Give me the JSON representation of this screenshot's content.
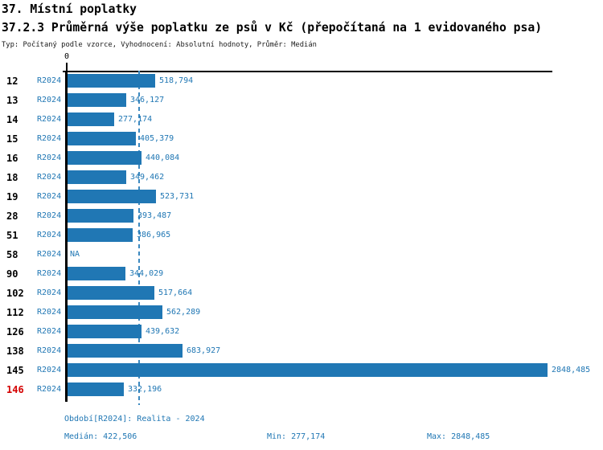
{
  "header": {
    "title": "37. Místní poplatky",
    "subtitle": "37.2.3 Průměrná výše poplatku ze psů v Kč (přepočítaná na 1 evidovaného psa)",
    "meta": "Typ: Počítaný podle vzorce, Vyhodnocení: Absolutní hodnoty, Průměr: Medián"
  },
  "chart_data": {
    "type": "bar",
    "orientation": "horizontal",
    "x_axis_zero_label": "0",
    "na_label": "NA",
    "median_display": "422,506",
    "xlim_hint": [
      0,
      2900
    ],
    "grid": "median-dashed-line-only",
    "rows": [
      {
        "id": "12",
        "series": "R2024",
        "value": "518,794"
      },
      {
        "id": "13",
        "series": "R2024",
        "value": "346,127"
      },
      {
        "id": "14",
        "series": "R2024",
        "value": "277,174"
      },
      {
        "id": "15",
        "series": "R2024",
        "value": "405,379"
      },
      {
        "id": "16",
        "series": "R2024",
        "value": "440,084"
      },
      {
        "id": "18",
        "series": "R2024",
        "value": "349,462"
      },
      {
        "id": "19",
        "series": "R2024",
        "value": "523,731"
      },
      {
        "id": "28",
        "series": "R2024",
        "value": "393,487"
      },
      {
        "id": "51",
        "series": "R2024",
        "value": "386,965"
      },
      {
        "id": "58",
        "series": "R2024",
        "value": "NA"
      },
      {
        "id": "90",
        "series": "R2024",
        "value": "344,029"
      },
      {
        "id": "102",
        "series": "R2024",
        "value": "517,664"
      },
      {
        "id": "112",
        "series": "R2024",
        "value": "562,289"
      },
      {
        "id": "126",
        "series": "R2024",
        "value": "439,632"
      },
      {
        "id": "138",
        "series": "R2024",
        "value": "683,927"
      },
      {
        "id": "145",
        "series": "R2024",
        "value": "2848,485"
      },
      {
        "id": "146",
        "series": "R2024",
        "value": "332,196",
        "alert": true
      }
    ]
  },
  "footer": {
    "period": "Období[R2024]: Realita - 2024",
    "stats": [
      {
        "label": "Medián",
        "value": "422,506"
      },
      {
        "label": "Min",
        "value": "277,174"
      },
      {
        "label": "Max",
        "value": "2848,485"
      }
    ]
  },
  "colors": {
    "bar_blue": "#2077b4",
    "text_blue": "#2077b4",
    "median_line_blue": "#3c89c0",
    "alert_red": "#d40000",
    "axis_black": "#000000",
    "background": "#ffffff"
  }
}
